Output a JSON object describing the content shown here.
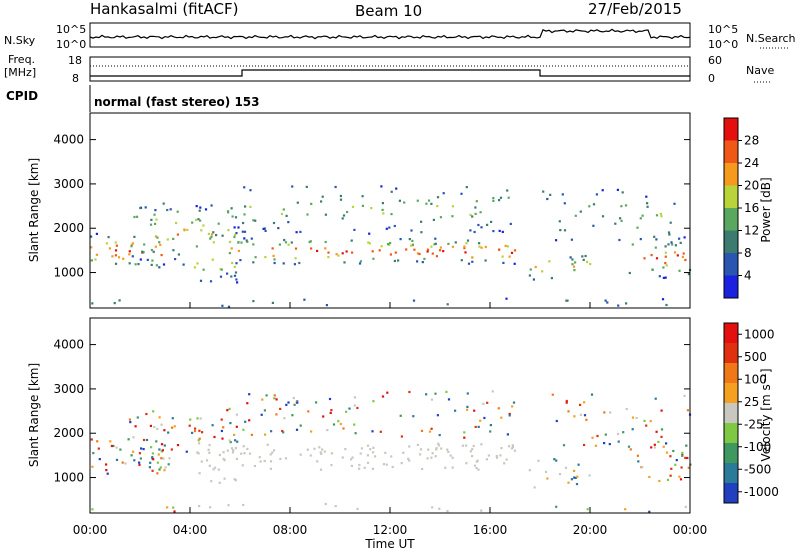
{
  "header": {
    "station": "Hankasalmi (fitACF)",
    "beam": "Beam 10",
    "date": "27/Feb/2015"
  },
  "noise_panel": {
    "left_label": "N.Sky",
    "left_top_tick": "10^5",
    "left_bottom_tick": "10^0",
    "right_label": "N.Search",
    "right_top_tick": "10^5",
    "right_bottom_tick": "10^0"
  },
  "freq_panel": {
    "left_label_line1": "Freq.",
    "left_label_line2": "[MHz]",
    "left_top_tick": "18",
    "left_bottom_tick": "8",
    "right_label": "Nave",
    "right_top_tick": "60",
    "right_bottom_tick": "0"
  },
  "cpid": {
    "label": "CPID",
    "value": "normal (fast stereo) 153"
  },
  "chart_data": [
    {
      "type": "heatmap",
      "name": "power",
      "ylabel": "Slant Range [km]",
      "ylim": [
        200,
        4600
      ],
      "yticks": [
        "1000",
        "2000",
        "3000",
        "4000"
      ],
      "colorbar_label": "Power [dB]",
      "colorbar_ticks": [
        "4",
        "8",
        "12",
        "16",
        "20",
        "24",
        "28"
      ],
      "colors": [
        "#1a22e0",
        "#2a55b0",
        "#3d7a70",
        "#5aa860",
        "#b8d43a",
        "#f59a1c",
        "#f05818",
        "#e41010"
      ]
    },
    {
      "type": "heatmap",
      "name": "velocity",
      "ylabel": "Slant Range [km]",
      "ylim": [
        200,
        4600
      ],
      "yticks": [
        "1000",
        "2000",
        "3000",
        "4000"
      ],
      "colorbar_label": "Velocity [m s⁻¹]",
      "colorbar_ticks": [
        "1000",
        "500",
        "100",
        "25",
        "-25",
        "-100",
        "-500",
        "-1000"
      ],
      "colors": [
        "#2040c0",
        "#2a7a9a",
        "#3e9860",
        "#7ec843",
        "#c8c8c0",
        "#f5a020",
        "#f07818",
        "#e03010",
        "#e41010"
      ]
    }
  ],
  "time_axis": {
    "label": "Time UT",
    "ticks": [
      "00:00",
      "04:00",
      "08:00",
      "12:00",
      "16:00",
      "20:00",
      "00:00"
    ]
  }
}
